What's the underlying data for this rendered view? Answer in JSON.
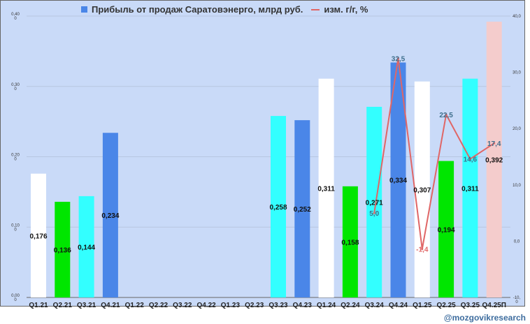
{
  "chart_data": {
    "type": "bar",
    "title": "",
    "categories": [
      "Q1.21",
      "Q2.21",
      "Q3.21",
      "Q4.21",
      "Q1.22",
      "Q2.22",
      "Q3.22",
      "Q4.22",
      "Q1.23",
      "Q2.23",
      "Q3.23",
      "Q4.23",
      "Q1.24",
      "Q2.24",
      "Q3.24",
      "Q4.24",
      "Q1.25",
      "Q2.25",
      "Q3.25",
      "Q4.25П"
    ],
    "series": [
      {
        "name": "Прибыль от продаж Саратовэнерго, млрд руб.",
        "type": "bar",
        "axis": "left",
        "values": [
          0.176,
          0.136,
          0.144,
          0.234,
          null,
          null,
          null,
          null,
          null,
          null,
          0.258,
          0.252,
          0.311,
          0.158,
          0.271,
          0.334,
          0.307,
          0.194,
          0.311,
          0.392
        ],
        "labels": [
          "0,176",
          "0,136",
          "0,144",
          "0,234",
          "",
          "",
          "",
          "",
          "",
          "",
          "0,258",
          "0,252",
          "0,311",
          "0,158",
          "0,271",
          "0,334",
          "0,307",
          "0,194",
          "0,311",
          "0,392"
        ]
      },
      {
        "name": "изм. г/г, %",
        "type": "line",
        "axis": "right",
        "color": "#e06666",
        "values": [
          null,
          null,
          null,
          null,
          null,
          null,
          null,
          null,
          null,
          null,
          null,
          null,
          null,
          null,
          5.0,
          32.5,
          -1.4,
          22.5,
          14.6,
          17.4
        ],
        "labels": [
          "",
          "",
          "",
          "",
          "",
          "",
          "",
          "",
          "",
          "",
          "",
          "",
          "",
          "",
          "5,0",
          "32,5",
          "-1,4",
          "22,5",
          "14,6",
          "17,4"
        ]
      }
    ],
    "bar_colors": [
      "#ffffff",
      "#00e600",
      "#33ffff",
      "#4a86e8",
      "#ffffff",
      "#00e600",
      "#33ffff",
      "#4a86e8",
      "#ffffff",
      "#00e600",
      "#33ffff",
      "#4a86e8",
      "#ffffff",
      "#00e600",
      "#33ffff",
      "#4a86e8",
      "#ffffff",
      "#00e600",
      "#33ffff",
      "#f4cccc"
    ],
    "ylim_left": [
      0,
      0.4
    ],
    "ylim_right": [
      -10,
      40
    ],
    "left_ticks": [
      "0,00\n0",
      "0,10\n0",
      "0,20\n0",
      "0,30\n0",
      "0,40\n0"
    ],
    "right_ticks": [
      "-10,\n0",
      "0,0",
      "10,0",
      "20,0",
      "30,0",
      "40,0"
    ],
    "grid": true,
    "legend_position": "top"
  },
  "legend": {
    "bar_label": "Прибыль от продаж Саратовэнерго, млрд руб.",
    "line_label": "изм. г/г, %"
  },
  "watermark": "@mozgovikresearch"
}
